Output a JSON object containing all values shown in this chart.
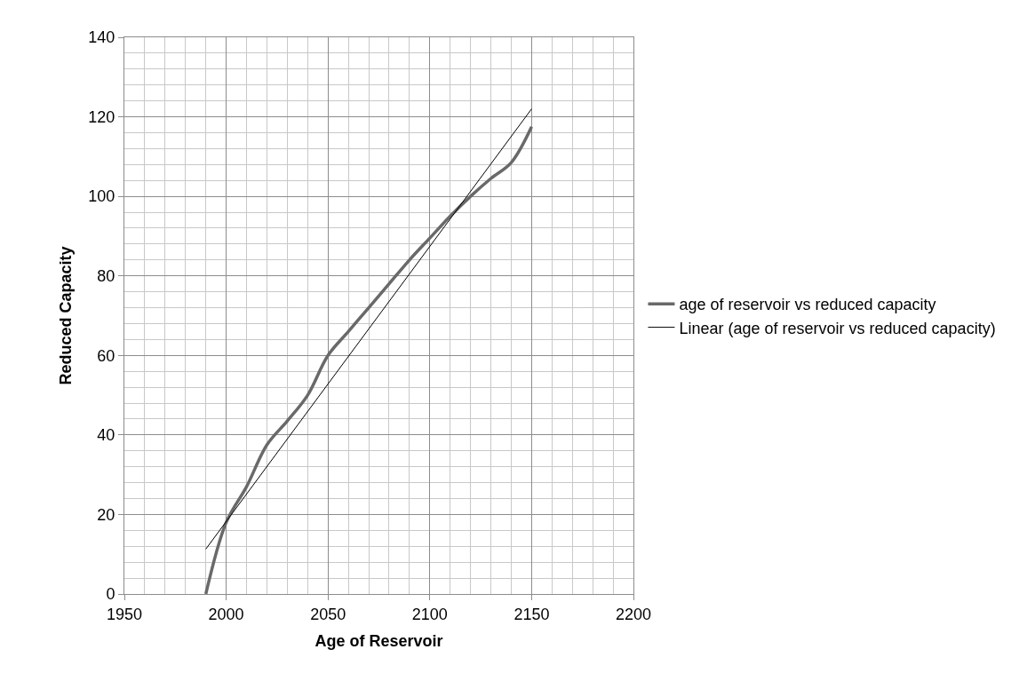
{
  "chart_data": {
    "type": "line",
    "xlabel": "Age of Reservoir",
    "ylabel": "Reduced Capacity",
    "x": [
      1990,
      2000,
      2010,
      2020,
      2030,
      2040,
      2050,
      2060,
      2070,
      2080,
      2090,
      2100,
      2110,
      2120,
      2130,
      2140,
      2150
    ],
    "series": [
      {
        "name": "age of reservoir vs reduced capacity",
        "color": "#696969",
        "values": [
          0,
          18,
          27,
          37.5,
          43.5,
          50,
          60,
          66,
          72,
          78,
          84,
          89.5,
          95,
          100,
          104.5,
          108.5,
          117.5
        ]
      },
      {
        "name": "Linear (age of reservoir vs reduced capacity)",
        "color": "#000000",
        "type": "line",
        "x": [
          1990,
          2150
        ],
        "values": [
          11.3,
          122
        ]
      }
    ],
    "xlim": [
      1950,
      2200
    ],
    "xticks": [
      1950,
      2000,
      2050,
      2100,
      2150,
      2200
    ],
    "ylim": [
      0,
      140
    ],
    "yticks": [
      0,
      20,
      40,
      60,
      80,
      100,
      120,
      140
    ],
    "grid": true,
    "legend": "right",
    "marker": "none",
    "line_style": "solid"
  }
}
